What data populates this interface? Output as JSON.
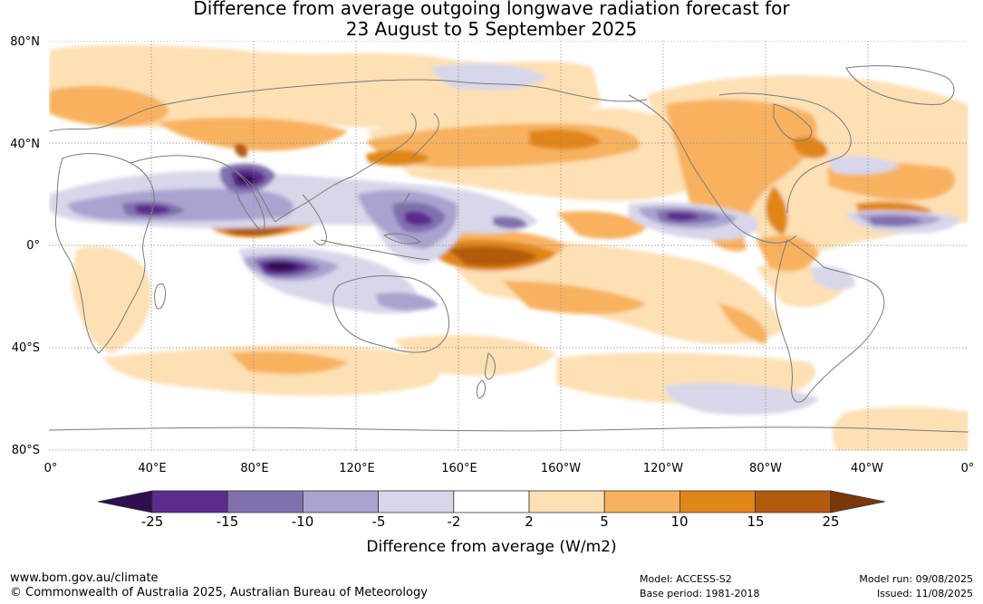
{
  "title": {
    "line1": "Difference from average outgoing longwave radiation forecast for",
    "line2": "23 August to 5 September 2025"
  },
  "map": {
    "lat_labels": [
      "80°N",
      "40°N",
      "0°",
      "40°S",
      "80°S"
    ],
    "lon_labels": [
      "0°",
      "40°E",
      "80°E",
      "120°E",
      "160°E",
      "160°W",
      "120°W",
      "80°W",
      "40°W",
      "0°"
    ],
    "colors": {
      "land_outline": "#7a7a7a",
      "gridline": "#888888"
    }
  },
  "colorbar": {
    "tick_labels": [
      "-25",
      "-15",
      "-10",
      "-5",
      "-2",
      "2",
      "5",
      "10",
      "15",
      "25"
    ],
    "colors": [
      "#2e0f4f",
      "#5b2c8e",
      "#8070ae",
      "#aaa3cf",
      "#d7d7ea",
      "#ffffff",
      "#fde0b4",
      "#f8b25e",
      "#e18619",
      "#b45a0f",
      "#7a3808"
    ],
    "title": "Difference from average (W/m2)"
  },
  "footer": {
    "url": "www.bom.gov.au/climate",
    "copyright": "© Commonwealth of Australia 2025, Australian Bureau of Meteorology",
    "model": "Model: ACCESS-S2",
    "base_period": "Base period: 1981-2018",
    "model_run": "Model run: 09/08/2025",
    "issued": "Issued: 11/08/2025"
  }
}
